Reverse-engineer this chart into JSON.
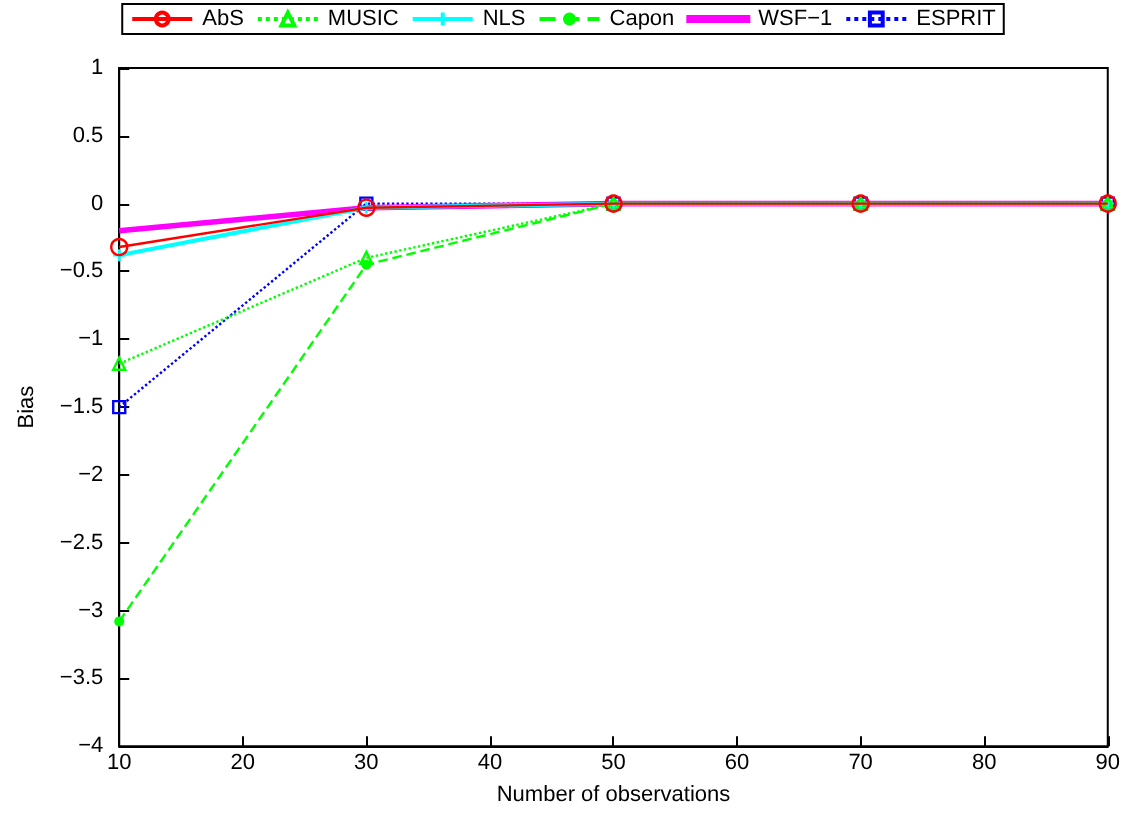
{
  "chart_data": {
    "type": "line",
    "xlabel": "Number of observations",
    "ylabel": "Bias",
    "x": [
      10,
      30,
      50,
      70,
      90
    ],
    "series": [
      {
        "name": "AbS",
        "color": "#ff0000",
        "marker": "circle",
        "line_style": "solid",
        "values": [
          -0.32,
          -0.03,
          0,
          0,
          0
        ]
      },
      {
        "name": "MUSIC",
        "color": "#00ff00",
        "marker": "triangle",
        "line_style": "dotted",
        "values": [
          -1.18,
          -0.4,
          0,
          0,
          0
        ]
      },
      {
        "name": "NLS",
        "color": "#00ffff",
        "marker": "cross",
        "line_style": "solid",
        "values": [
          -0.38,
          -0.03,
          0,
          0,
          0
        ]
      },
      {
        "name": "Capon",
        "color": "#00ff00",
        "marker": "circle",
        "line_style": "dashed",
        "values": [
          -3.08,
          -0.45,
          0,
          0,
          0
        ]
      },
      {
        "name": "WSF−1",
        "color": "#ff00ff",
        "marker": "none",
        "line_style": "solid",
        "values": [
          -0.2,
          -0.03,
          0,
          0,
          0
        ]
      },
      {
        "name": "ESPRIT",
        "color": "#0000ff",
        "marker": "square",
        "line_style": "dotted",
        "values": [
          -1.5,
          0,
          0,
          0,
          0
        ]
      }
    ],
    "xlim": [
      10,
      90
    ],
    "xticks": [
      10,
      20,
      30,
      40,
      50,
      60,
      70,
      80,
      90
    ],
    "ylim": [
      -4,
      1
    ],
    "yticks": [
      -4,
      -3.5,
      -3,
      -2.5,
      -2,
      -1.5,
      -1,
      -0.5,
      0,
      0.5,
      1
    ],
    "grid": false,
    "legend": "top"
  }
}
